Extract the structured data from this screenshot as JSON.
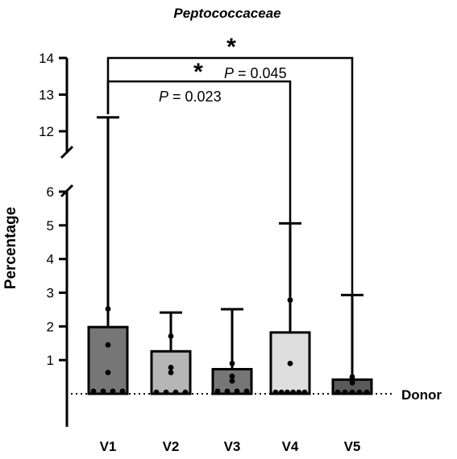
{
  "chart_data": {
    "type": "bar",
    "title": "Peptococcaceae",
    "ylabel": "Percentage",
    "xlabel": "",
    "categories": [
      "V1",
      "V2",
      "V3",
      "V4",
      "V5"
    ],
    "axis_break": {
      "lower": [
        0,
        6
      ],
      "upper": [
        11.4,
        14
      ]
    },
    "yticks_lower": [
      1,
      2,
      3,
      4,
      5,
      6
    ],
    "yticks_upper": [
      12,
      13,
      14
    ],
    "bars": [
      {
        "category": "V1",
        "median": 1.98,
        "max": 12.38,
        "color": "#767676",
        "points": [
          0.05,
          0.05,
          0.05,
          0.05,
          0.63,
          1.45,
          2.52
        ]
      },
      {
        "category": "V2",
        "median": 1.26,
        "max": 2.41,
        "color": "#b6b6b6",
        "points": [
          0.02,
          0.02,
          0.02,
          0.02,
          0.63,
          0.78,
          1.71
        ]
      },
      {
        "category": "V3",
        "median": 0.73,
        "max": 2.51,
        "color": "#767676",
        "points": [
          0.05,
          0.05,
          0.05,
          0.05,
          0.38,
          0.52,
          0.9
        ]
      },
      {
        "category": "V4",
        "median": 1.82,
        "max": 5.06,
        "color": "#dedede",
        "points": [
          0.02,
          0.02,
          0.02,
          0.02,
          0.02,
          0.02,
          0.9,
          2.78
        ]
      },
      {
        "category": "V5",
        "median": 0.42,
        "max": 2.93,
        "color": "#595959",
        "points": [
          0.02,
          0.02,
          0.02,
          0.02,
          0.02,
          0.33,
          0.5
        ]
      }
    ],
    "reference_line": {
      "label": "Donor",
      "value": 0,
      "style": "dotted"
    },
    "comparisons": [
      {
        "from": "V1",
        "to": "V4",
        "marker": "*",
        "p_prefix": "P",
        "p_text": " = 0.023",
        "level": 13.36
      },
      {
        "from": "V1",
        "to": "V5",
        "marker": "*",
        "p_prefix": "P",
        "p_text": " = 0.045",
        "level": 14.0
      }
    ]
  }
}
